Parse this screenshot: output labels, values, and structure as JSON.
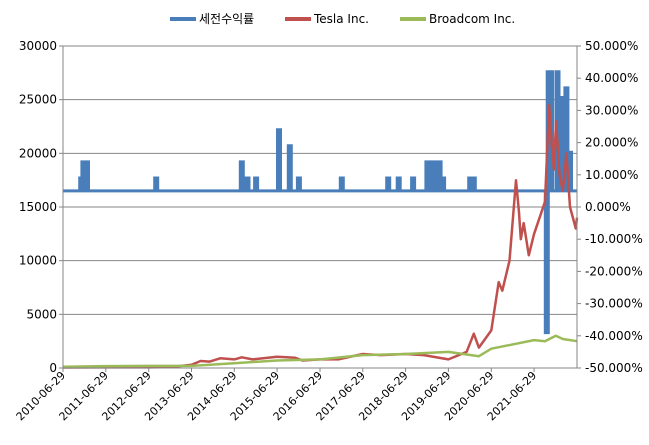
{
  "chart_data": {
    "type": "line",
    "title": "",
    "legend_position": "top",
    "grid": "horizontal",
    "y_left": {
      "ylim": [
        0,
        30000
      ],
      "ticks": [
        "0",
        "5000",
        "10000",
        "15000",
        "20000",
        "25000",
        "30000"
      ]
    },
    "y_right": {
      "ylim": [
        -0.5,
        0.5
      ],
      "ticks": [
        "-50.000%",
        "-40.000%",
        "-30.000%",
        "-20.000%",
        "-10.000%",
        "0.000%",
        "10.000%",
        "20.000%",
        "30.000%",
        "40.000%",
        "50.000%"
      ]
    },
    "x_ticks": [
      "2010-06-29",
      "2011-06-29",
      "2012-06-29",
      "2013-06-29",
      "2014-06-29",
      "2015-06-29",
      "2016-06-29",
      "2017-06-29",
      "2018-06-29",
      "2019-06-29",
      "2020-06-29",
      "2021-06-29"
    ],
    "x_range": [
      "2010-06-29",
      "2022-06-30"
    ],
    "series": [
      {
        "name": "세전수익률",
        "color": "#4a7ebb",
        "axis": "right",
        "base": 0.05,
        "spikes": [
          [
            "2010-12-01",
            0.09
          ],
          [
            "2010-12-20",
            0.14
          ],
          [
            "2011-01-20",
            0.14
          ],
          [
            "2012-09-01",
            0.09
          ],
          [
            "2014-09-01",
            0.14
          ],
          [
            "2014-10-20",
            0.09
          ],
          [
            "2015-01-01",
            0.09
          ],
          [
            "2015-07-15",
            0.24
          ],
          [
            "2015-10-15",
            0.19
          ],
          [
            "2016-01-01",
            0.09
          ],
          [
            "2017-01-01",
            0.09
          ],
          [
            "2018-02-01",
            0.09
          ],
          [
            "2018-05-01",
            0.09
          ],
          [
            "2018-09-01",
            0.09
          ],
          [
            "2019-01-01",
            0.14
          ],
          [
            "2019-02-15",
            0.14
          ],
          [
            "2019-03-20",
            0.14
          ],
          [
            "2019-04-15",
            0.14
          ],
          [
            "2019-05-15",
            0.09
          ],
          [
            "2020-01-01",
            0.09
          ],
          [
            "2020-02-01",
            0.09
          ],
          [
            "2021-10-15",
            -0.39
          ],
          [
            "2021-11-01",
            0.42
          ],
          [
            "2021-11-20",
            0.42
          ],
          [
            "2022-01-15",
            0.42
          ],
          [
            "2022-03-01",
            0.34
          ],
          [
            "2022-04-01",
            0.37
          ],
          [
            "2022-05-01",
            0.17
          ]
        ]
      },
      {
        "name": "Tesla Inc.",
        "color": "#c0504d",
        "axis": "left",
        "points": [
          [
            "2010-06-29",
            50
          ],
          [
            "2011-06-29",
            55
          ],
          [
            "2012-06-29",
            60
          ],
          [
            "2013-01-01",
            80
          ],
          [
            "2013-06-29",
            300
          ],
          [
            "2013-09-15",
            650
          ],
          [
            "2013-12-01",
            600
          ],
          [
            "2014-03-01",
            900
          ],
          [
            "2014-06-29",
            800
          ],
          [
            "2014-09-01",
            1000
          ],
          [
            "2014-12-01",
            800
          ],
          [
            "2015-06-29",
            1050
          ],
          [
            "2015-12-01",
            950
          ],
          [
            "2016-02-01",
            700
          ],
          [
            "2016-06-29",
            800
          ],
          [
            "2016-12-01",
            800
          ],
          [
            "2017-06-29",
            1300
          ],
          [
            "2017-12-01",
            1200
          ],
          [
            "2018-06-29",
            1300
          ],
          [
            "2018-12-01",
            1200
          ],
          [
            "2019-06-29",
            800
          ],
          [
            "2019-12-01",
            1500
          ],
          [
            "2020-02-01",
            3200
          ],
          [
            "2020-03-15",
            1900
          ],
          [
            "2020-06-29",
            3500
          ],
          [
            "2020-08-31",
            8000
          ],
          [
            "2020-10-01",
            7200
          ],
          [
            "2020-12-01",
            10000
          ],
          [
            "2021-01-26",
            17500
          ],
          [
            "2021-02-20",
            14500
          ],
          [
            "2021-03-08",
            12000
          ],
          [
            "2021-04-01",
            13500
          ],
          [
            "2021-05-15",
            10500
          ],
          [
            "2021-06-29",
            12500
          ],
          [
            "2021-08-15",
            14000
          ],
          [
            "2021-09-30",
            15500
          ],
          [
            "2021-11-04",
            24500
          ],
          [
            "2021-11-25",
            21000
          ],
          [
            "2021-12-15",
            18500
          ],
          [
            "2022-01-03",
            23000
          ],
          [
            "2022-02-01",
            18000
          ],
          [
            "2022-03-01",
            16500
          ],
          [
            "2022-04-01",
            20000
          ],
          [
            "2022-05-01",
            15000
          ],
          [
            "2022-06-20",
            13000
          ],
          [
            "2022-06-30",
            14000
          ]
        ]
      },
      {
        "name": "Broadcom Inc.",
        "color": "#9bbb59",
        "axis": "left",
        "points": [
          [
            "2010-06-29",
            120
          ],
          [
            "2011-06-29",
            180
          ],
          [
            "2012-06-29",
            200
          ],
          [
            "2013-06-29",
            200
          ],
          [
            "2014-06-29",
            450
          ],
          [
            "2015-06-29",
            700
          ],
          [
            "2016-06-29",
            800
          ],
          [
            "2017-06-29",
            1200
          ],
          [
            "2018-06-29",
            1300
          ],
          [
            "2019-06-29",
            1500
          ],
          [
            "2020-03-15",
            1100
          ],
          [
            "2020-06-29",
            1800
          ],
          [
            "2021-06-29",
            2600
          ],
          [
            "2021-09-30",
            2500
          ],
          [
            "2021-12-31",
            3000
          ],
          [
            "2022-03-01",
            2700
          ],
          [
            "2022-06-30",
            2500
          ]
        ]
      }
    ]
  }
}
